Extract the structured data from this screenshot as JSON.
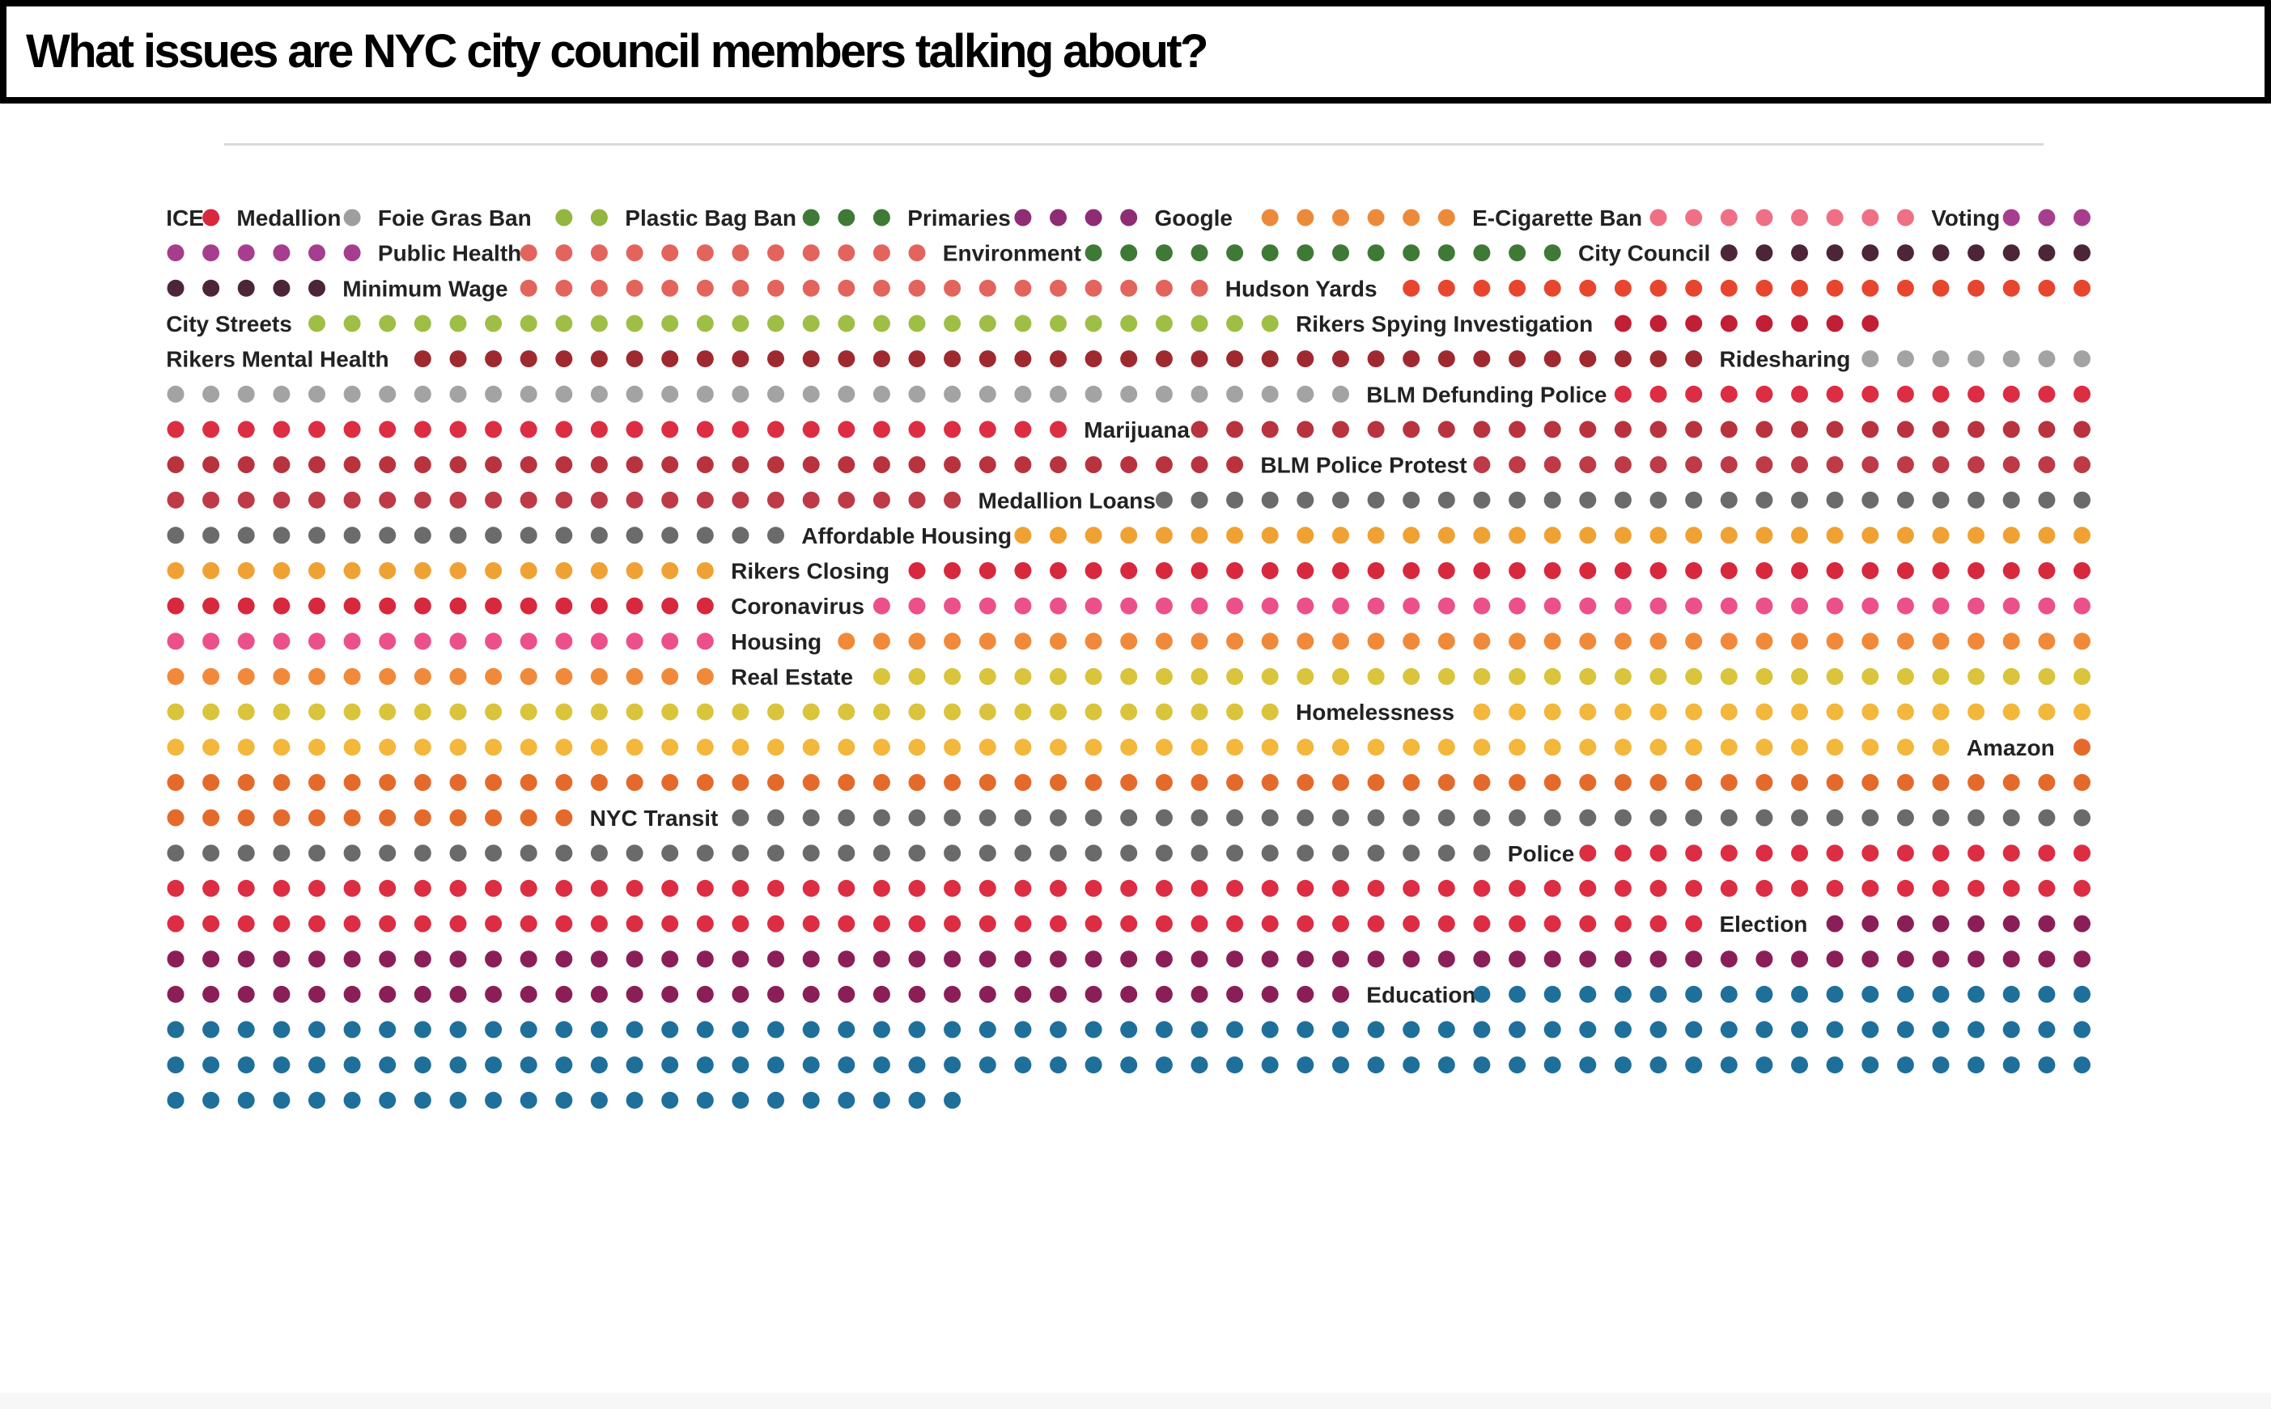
{
  "title": "What issues are NYC city council members talking about?",
  "chart_data": {
    "type": "unit-dot-grid",
    "columns": 55,
    "reading_order": "row-major, left to right, top to bottom; each label precedes its dots",
    "topics": [
      {
        "label": "ICE",
        "dots": 1,
        "color": "#d8283d"
      },
      {
        "label": "Medallion",
        "dots": 1,
        "color": "#9e9e9e"
      },
      {
        "label": "Foie Gras Ban",
        "dots": 2,
        "color": "#92b640"
      },
      {
        "label": "Plastic Bag Ban",
        "dots": 3,
        "color": "#3e7a36"
      },
      {
        "label": "Primaries",
        "dots": 4,
        "color": "#8e2c74"
      },
      {
        "label": "Google",
        "dots": 6,
        "color": "#ec8a3c"
      },
      {
        "label": "E-Cigarette Ban",
        "dots": 8,
        "color": "#ef6f84"
      },
      {
        "label": "Voting",
        "dots": 9,
        "color": "#a73d8e"
      },
      {
        "label": "Public Health",
        "dots": 12,
        "color": "#e3645d"
      },
      {
        "label": "Environment",
        "dots": 14,
        "color": "#3e7a36"
      },
      {
        "label": "City Council",
        "dots": 16,
        "color": "#4c2539"
      },
      {
        "label": "Minimum Wage",
        "dots": 20,
        "color": "#e3645d"
      },
      {
        "label": "Hudson Yards",
        "dots": 20,
        "color": "#e8452f"
      },
      {
        "label": "City Streets",
        "dots": 28,
        "color": "#9fbe46"
      },
      {
        "label": "Rikers Spying Investigation",
        "dots": 8,
        "color": "#c11f35"
      },
      {
        "label": "Rikers Mental Health",
        "dots": 37,
        "color": "#9e2a2f"
      },
      {
        "label": "Ridesharing",
        "dots": 41,
        "color": "#a3a3a3"
      },
      {
        "label": "BLM Defunding Police",
        "dots": 40,
        "color": "#dc2d43"
      },
      {
        "label": "Marijuana",
        "dots": 57,
        "color": "#b8333e"
      },
      {
        "label": "BLM Police Protest",
        "dots": 41,
        "color": "#bd3a46"
      },
      {
        "label": "Medallion Loans",
        "dots": 45,
        "color": "#6b6b6b"
      },
      {
        "label": "Affordable Housing",
        "dots": 47,
        "color": "#efa233"
      },
      {
        "label": "Rikers Closing",
        "dots": 50,
        "color": "#d8283d"
      },
      {
        "label": "Coronavirus",
        "dots": 51,
        "color": "#ec508a"
      },
      {
        "label": "Housing",
        "dots": 52,
        "color": "#f08a3a"
      },
      {
        "label": "Real Estate",
        "dots": 67,
        "color": "#d9c43c"
      },
      {
        "label": "Homelessness",
        "dots": 69,
        "color": "#f2b73b"
      },
      {
        "label": "Amazon",
        "dots": 68,
        "color": "#e46a2b"
      },
      {
        "label": "NYC Transit",
        "dots": 77,
        "color": "#6a6a6a"
      },
      {
        "label": "Police",
        "dots": 114,
        "color": "#dc2d43"
      },
      {
        "label": "Election",
        "dots": 97,
        "color": "#8a1f57"
      },
      {
        "label": "Education",
        "dots": 151,
        "color": "#1f6f9b"
      }
    ]
  }
}
